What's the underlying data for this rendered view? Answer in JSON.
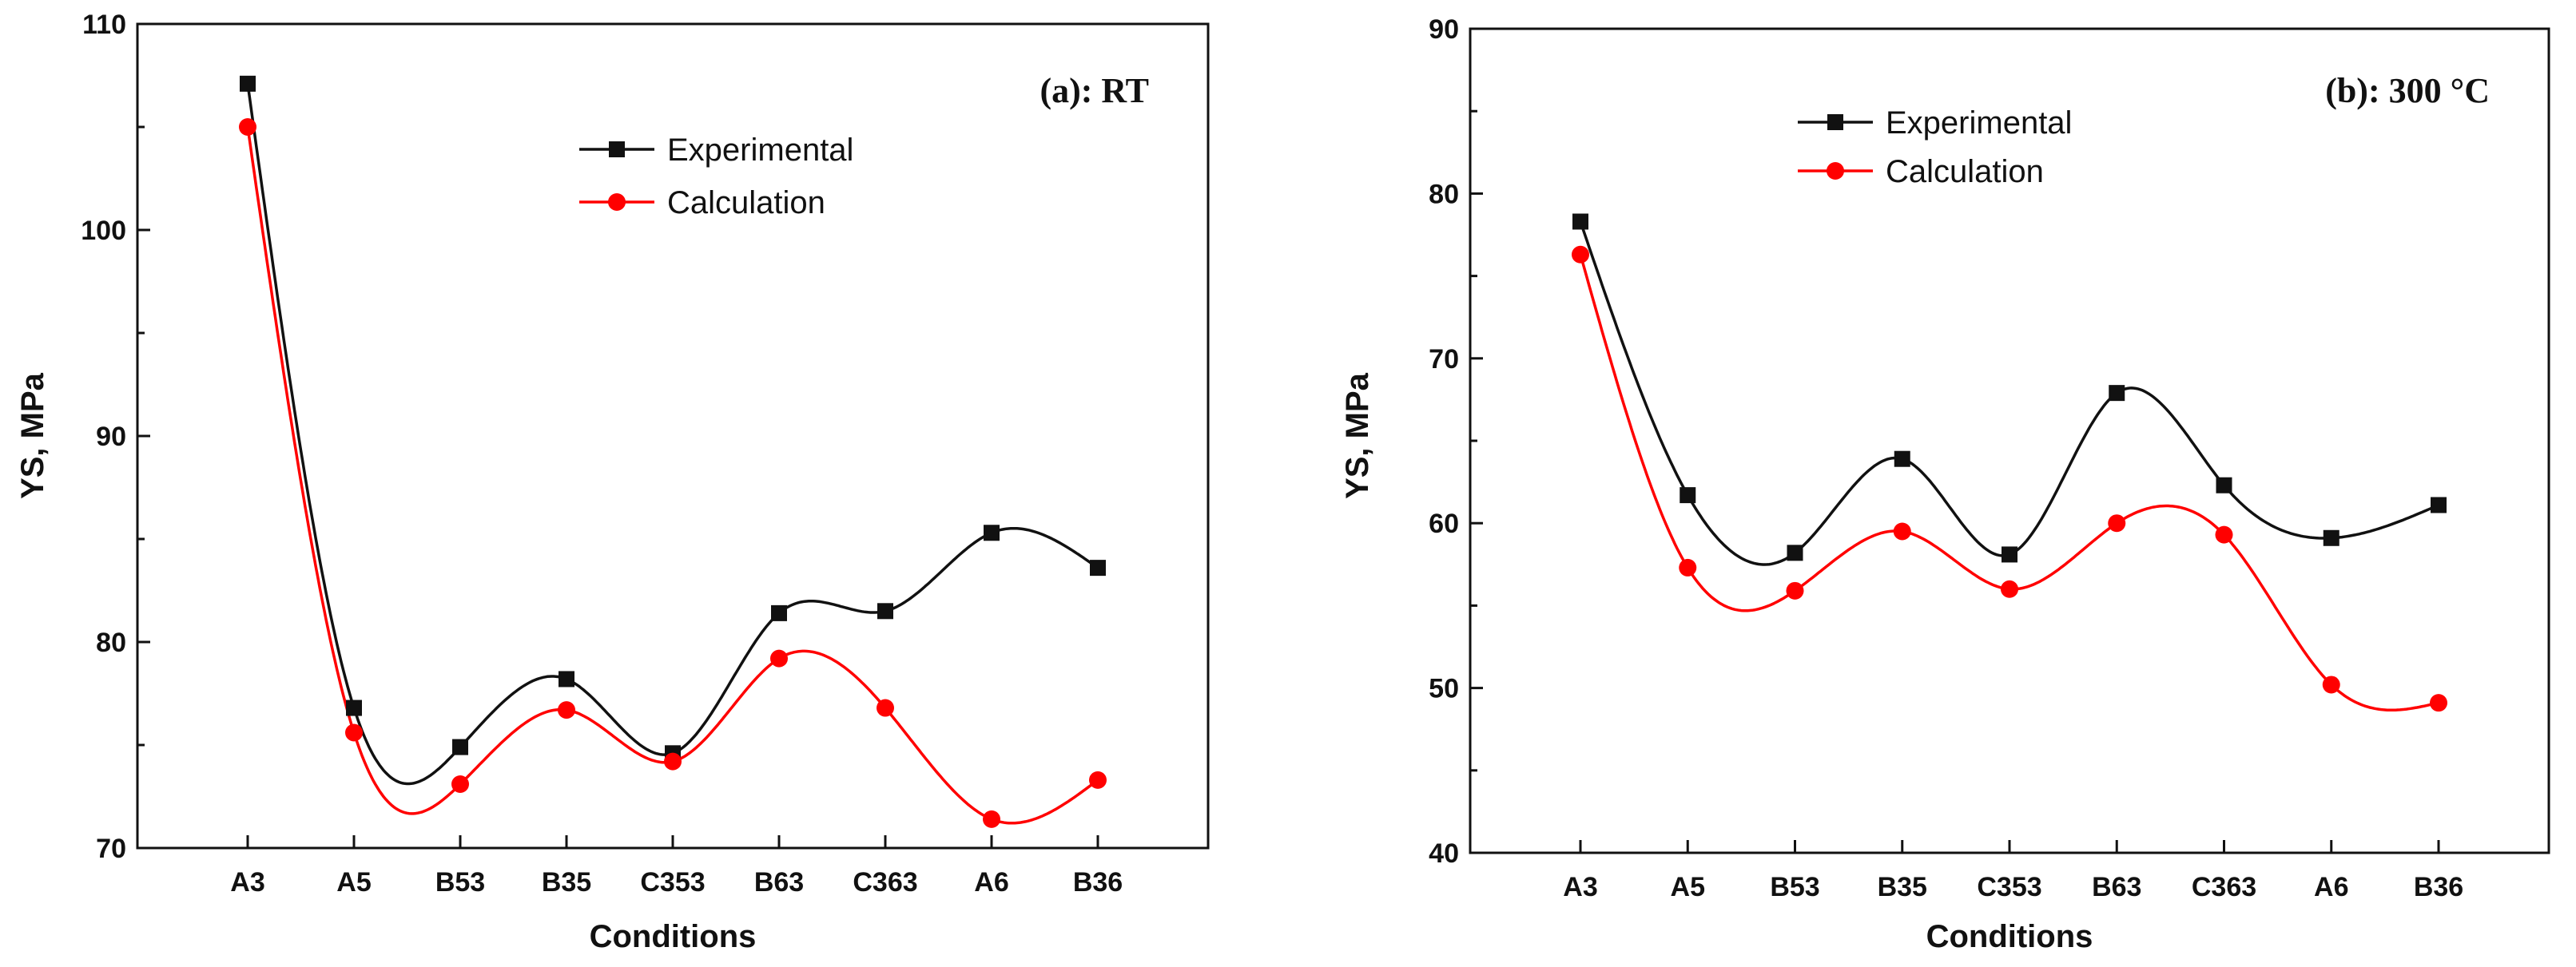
{
  "colors": {
    "experimental": "#111111",
    "calculation": "#ff0000",
    "axis": "#111111",
    "background": "#ffffff"
  },
  "chart_data": [
    {
      "type": "line",
      "title": "(a): RT",
      "xlabel": "Conditions",
      "ylabel": "YS, MPa",
      "categories": [
        "A3",
        "A5",
        "B53",
        "B35",
        "C353",
        "B63",
        "C363",
        "A6",
        "B36"
      ],
      "ylim": [
        70,
        110
      ],
      "yticks": [
        70,
        80,
        90,
        100,
        110
      ],
      "grid": false,
      "legend_position": "top-center",
      "series": [
        {
          "name": "Experimental",
          "marker": "square",
          "values": [
            107.1,
            76.8,
            74.9,
            78.2,
            74.6,
            81.4,
            81.5,
            85.3,
            83.6
          ]
        },
        {
          "name": "Calculation",
          "marker": "circle",
          "values": [
            105.0,
            75.6,
            73.1,
            76.7,
            74.2,
            79.2,
            76.8,
            71.4,
            73.3
          ]
        }
      ]
    },
    {
      "type": "line",
      "title": "(b): 300 °C",
      "xlabel": "Conditions",
      "ylabel": "YS, MPa",
      "categories": [
        "A3",
        "A5",
        "B53",
        "B35",
        "C353",
        "B63",
        "C363",
        "A6",
        "B36"
      ],
      "ylim": [
        40,
        90
      ],
      "yticks": [
        40,
        50,
        60,
        70,
        80,
        90
      ],
      "grid": false,
      "legend_position": "top-left",
      "series": [
        {
          "name": "Experimental",
          "marker": "square",
          "values": [
            78.3,
            61.7,
            58.2,
            63.9,
            58.1,
            67.9,
            62.3,
            59.1,
            61.1
          ]
        },
        {
          "name": "Calculation",
          "marker": "circle",
          "values": [
            76.3,
            57.3,
            55.9,
            59.5,
            56.0,
            60.0,
            59.3,
            50.2,
            49.1
          ]
        }
      ]
    }
  ]
}
